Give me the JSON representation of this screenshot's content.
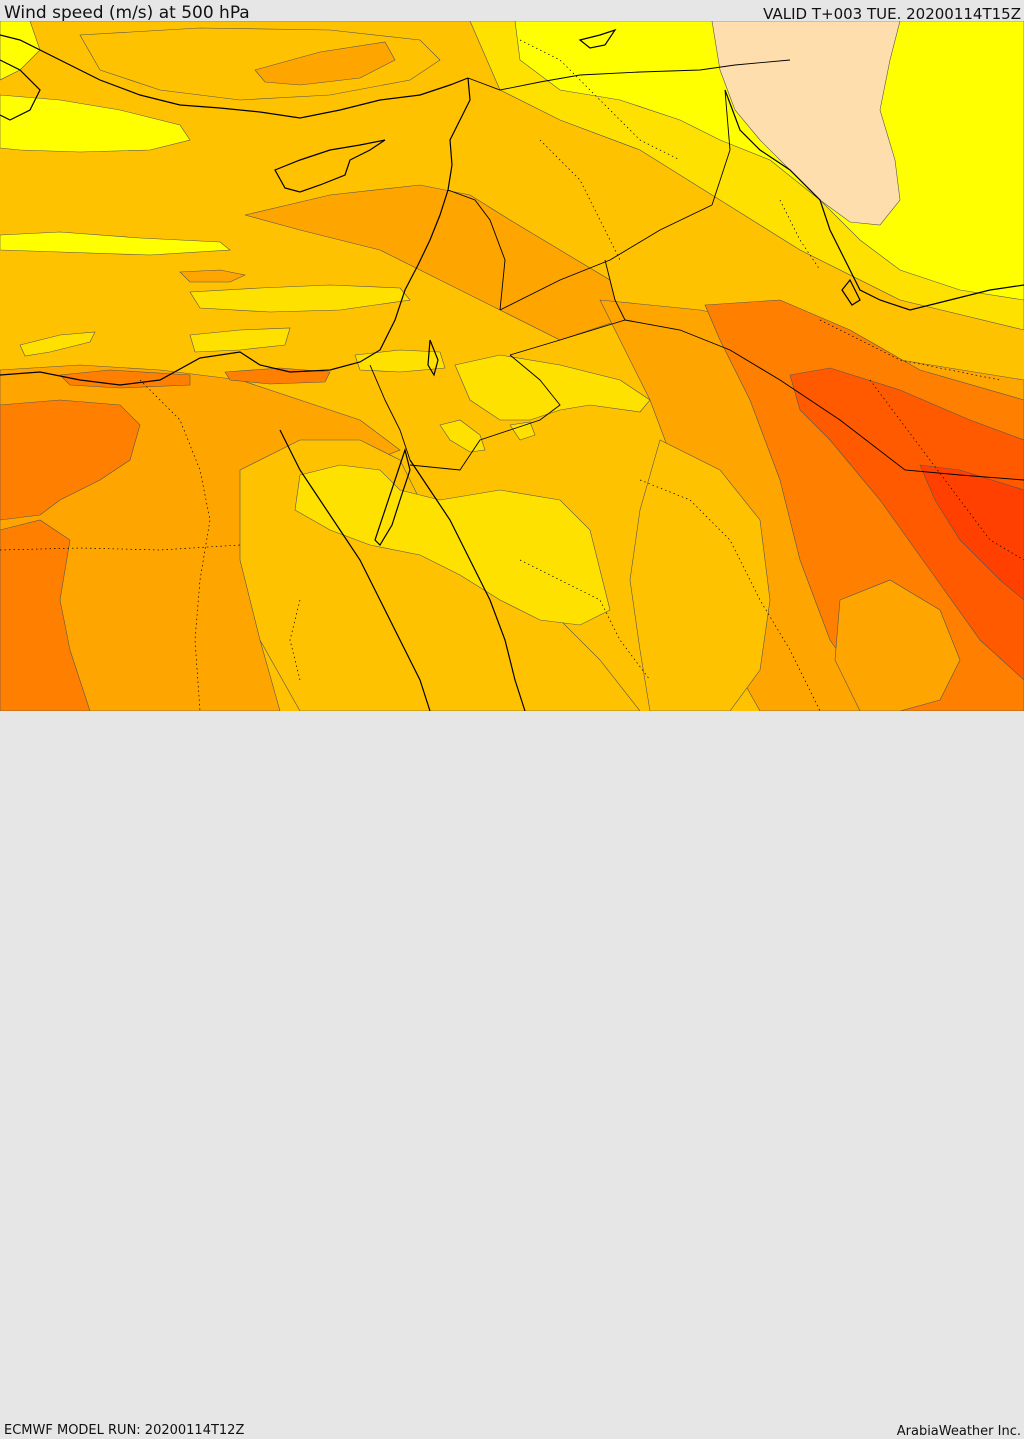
{
  "header": {
    "title": "Wind speed (m/s) at 500 hPa",
    "valid_time": "VALID T+003 TUE. 20200114T15Z"
  },
  "footer": {
    "model_run": "ECMWF MODEL RUN: 20200114T12Z",
    "credit": "ArabiaWeather Inc."
  },
  "legend_colors": {
    "wheat": "#ffdead",
    "yellow": "#ffff00",
    "gold": "#ffe100",
    "amber": "#ffc200",
    "orange": "#ffa500",
    "dark_orange": "#ff7f00",
    "red_orange": "#ff5a00",
    "red": "#ff4000"
  }
}
